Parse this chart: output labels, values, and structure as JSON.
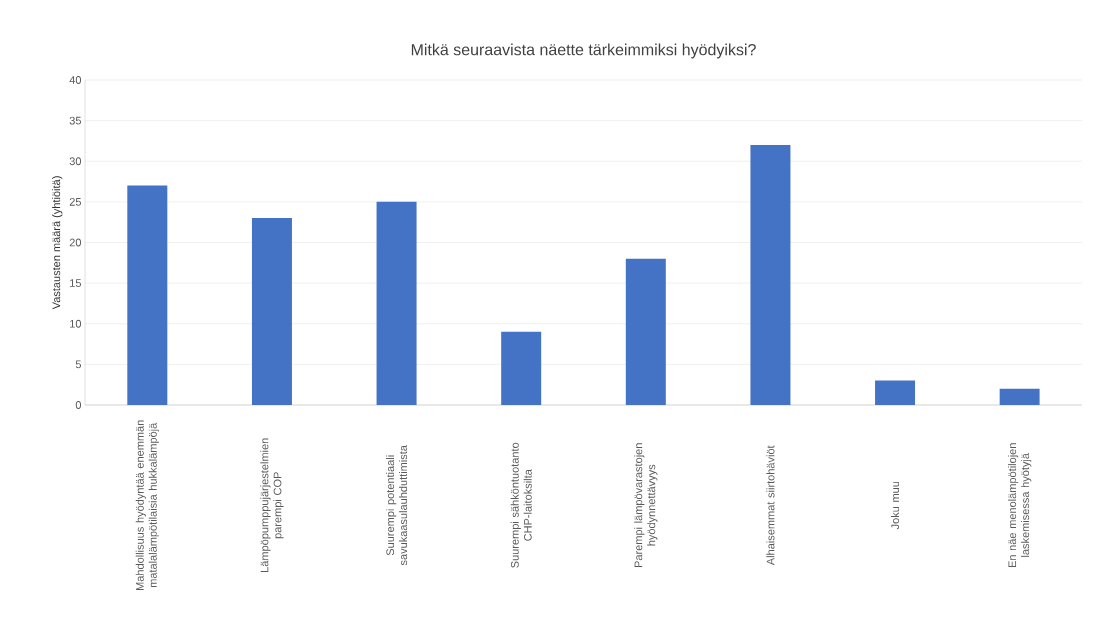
{
  "chart_data": {
    "type": "bar",
    "title": "Mitkä seuraavista näette tärkeimmiksi hyödyiksi?",
    "ylabel": "Vastausten määrä (yhtiöitä)",
    "categories": [
      "Mahdollisuus hyödyntää enemmän matalalämpötilaisia hukkalämpöjä",
      "Lämpöpumppujärjestelmien parempi COP",
      "Suurempi potentiaali savukaasulauhduttimista",
      "Suurempi sähköntuotanto CHP-laitoksilta",
      "Parempi lämpövarastojen hyödynnettävyys",
      "Alhaisemmat siirtohäviöt",
      "Joku muu",
      "En näe menolämpötilojen laskemisessa hyötyjä"
    ],
    "values": [
      27,
      23,
      25,
      9,
      18,
      32,
      3,
      2
    ],
    "color": "#4472c4",
    "ylim": [
      0,
      40
    ],
    "yticks": [
      0,
      5,
      10,
      15,
      20,
      25,
      30,
      35,
      40
    ],
    "grid": "y"
  }
}
